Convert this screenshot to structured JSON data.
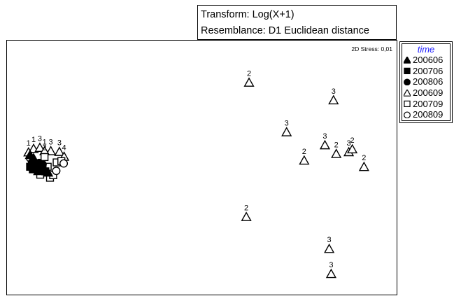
{
  "info": {
    "transform": "Transform: Log(X+1)",
    "resemblance": "Resemblance: D1 Euclidean distance"
  },
  "chart_data": {
    "type": "scatter",
    "title": "",
    "xlabel": "",
    "ylabel": "",
    "xlim": [
      0,
      100
    ],
    "ylim": [
      0,
      100
    ],
    "grid": false,
    "stress_label": "2D Stress: 0,01",
    "legend": {
      "title": "time",
      "placement": "right",
      "title_color": "#1a1aff",
      "entries": [
        {
          "label": "200606",
          "symbol": "triangle-filled"
        },
        {
          "label": "200706",
          "symbol": "square-filled"
        },
        {
          "label": "200806",
          "symbol": "circle-filled"
        },
        {
          "label": "200609",
          "symbol": "triangle-open"
        },
        {
          "label": "200709",
          "symbol": "square-open"
        },
        {
          "label": "200809",
          "symbol": "circle-open"
        }
      ]
    },
    "points": [
      {
        "x": 61.9,
        "y": 83.4,
        "symbol": "triangle-open",
        "label": "2"
      },
      {
        "x": 83.5,
        "y": 76.5,
        "symbol": "triangle-open",
        "label": "3"
      },
      {
        "x": 71.5,
        "y": 64.0,
        "symbol": "triangle-open",
        "label": "3"
      },
      {
        "x": 81.3,
        "y": 58.9,
        "symbol": "triangle-open",
        "label": "3"
      },
      {
        "x": 84.2,
        "y": 55.5,
        "symbol": "triangle-open",
        "label": "2"
      },
      {
        "x": 87.4,
        "y": 56.2,
        "symbol": "triangle-open",
        "label": "3"
      },
      {
        "x": 88.3,
        "y": 57.3,
        "symbol": "triangle-open",
        "label": "2"
      },
      {
        "x": 76.0,
        "y": 52.9,
        "symbol": "triangle-open",
        "label": "2"
      },
      {
        "x": 91.3,
        "y": 50.4,
        "symbol": "triangle-open",
        "label": "2"
      },
      {
        "x": 61.2,
        "y": 30.8,
        "symbol": "triangle-open",
        "label": "2"
      },
      {
        "x": 82.4,
        "y": 18.3,
        "symbol": "triangle-open",
        "label": "3"
      },
      {
        "x": 82.9,
        "y": 8.5,
        "symbol": "triangle-open",
        "label": "3"
      },
      {
        "x": 6.8,
        "y": 57.5,
        "symbol": "triangle-open",
        "label": "1"
      },
      {
        "x": 5.5,
        "y": 56.1,
        "symbol": "triangle-open",
        "label": "1"
      },
      {
        "x": 8.4,
        "y": 57.9,
        "symbol": "triangle-open",
        "label": "3"
      },
      {
        "x": 11.2,
        "y": 56.6,
        "symbol": "triangle-open",
        "label": "3"
      },
      {
        "x": 13.4,
        "y": 56.3,
        "symbol": "triangle-open",
        "label": "3"
      },
      {
        "x": 9.6,
        "y": 56.6,
        "symbol": "triangle-open",
        "label": "1"
      },
      {
        "x": 14.6,
        "y": 54.4,
        "symbol": "triangle-open",
        "label": "4"
      },
      {
        "x": 9.6,
        "y": 54.4,
        "symbol": "square-open",
        "label": "2"
      },
      {
        "x": 8.5,
        "y": 47.5,
        "symbol": "square-open",
        "label": "3"
      },
      {
        "x": 12.7,
        "y": 52.3,
        "symbol": "square-open",
        "label": ""
      },
      {
        "x": 11.0,
        "y": 46.3,
        "symbol": "square-open",
        "label": ""
      },
      {
        "x": 13.9,
        "y": 52.8,
        "symbol": "square-open",
        "label": ""
      },
      {
        "x": 10.4,
        "y": 50.6,
        "symbol": "square-open",
        "label": ""
      },
      {
        "x": 11.8,
        "y": 47.3,
        "symbol": "square-open",
        "label": ""
      },
      {
        "x": 5.9,
        "y": 54.0,
        "symbol": "circle-open",
        "label": ""
      },
      {
        "x": 14.5,
        "y": 51.9,
        "symbol": "circle-open",
        "label": ""
      },
      {
        "x": 8.0,
        "y": 50.1,
        "symbol": "circle-open",
        "label": ""
      },
      {
        "x": 12.6,
        "y": 49.0,
        "symbol": "circle-open",
        "label": ""
      },
      {
        "x": 5.9,
        "y": 55.1,
        "symbol": "triangle-filled",
        "label": ""
      },
      {
        "x": 6.8,
        "y": 53.8,
        "symbol": "triangle-filled",
        "label": ""
      },
      {
        "x": 7.1,
        "y": 51.7,
        "symbol": "triangle-filled",
        "label": ""
      },
      {
        "x": 8.0,
        "y": 48.8,
        "symbol": "triangle-filled",
        "label": ""
      },
      {
        "x": 10.5,
        "y": 48.2,
        "symbol": "triangle-filled",
        "label": ""
      },
      {
        "x": 5.9,
        "y": 50.6,
        "symbol": "square-filled",
        "label": ""
      },
      {
        "x": 7.1,
        "y": 50.4,
        "symbol": "square-filled",
        "label": ""
      },
      {
        "x": 9.1,
        "y": 49.3,
        "symbol": "square-filled",
        "label": ""
      },
      {
        "x": 9.8,
        "y": 48.8,
        "symbol": "square-filled",
        "label": ""
      },
      {
        "x": 6.6,
        "y": 49.6,
        "symbol": "square-filled",
        "label": ""
      },
      {
        "x": 6.4,
        "y": 52.3,
        "symbol": "circle-filled",
        "label": ""
      },
      {
        "x": 7.5,
        "y": 51.2,
        "symbol": "circle-filled",
        "label": ""
      },
      {
        "x": 8.2,
        "y": 52.1,
        "symbol": "circle-filled",
        "label": ""
      },
      {
        "x": 9.1,
        "y": 51.5,
        "symbol": "circle-filled",
        "label": ""
      },
      {
        "x": 7.7,
        "y": 49.3,
        "symbol": "circle-filled",
        "label": ""
      },
      {
        "x": 8.8,
        "y": 50.1,
        "symbol": "circle-filled",
        "label": ""
      }
    ]
  }
}
